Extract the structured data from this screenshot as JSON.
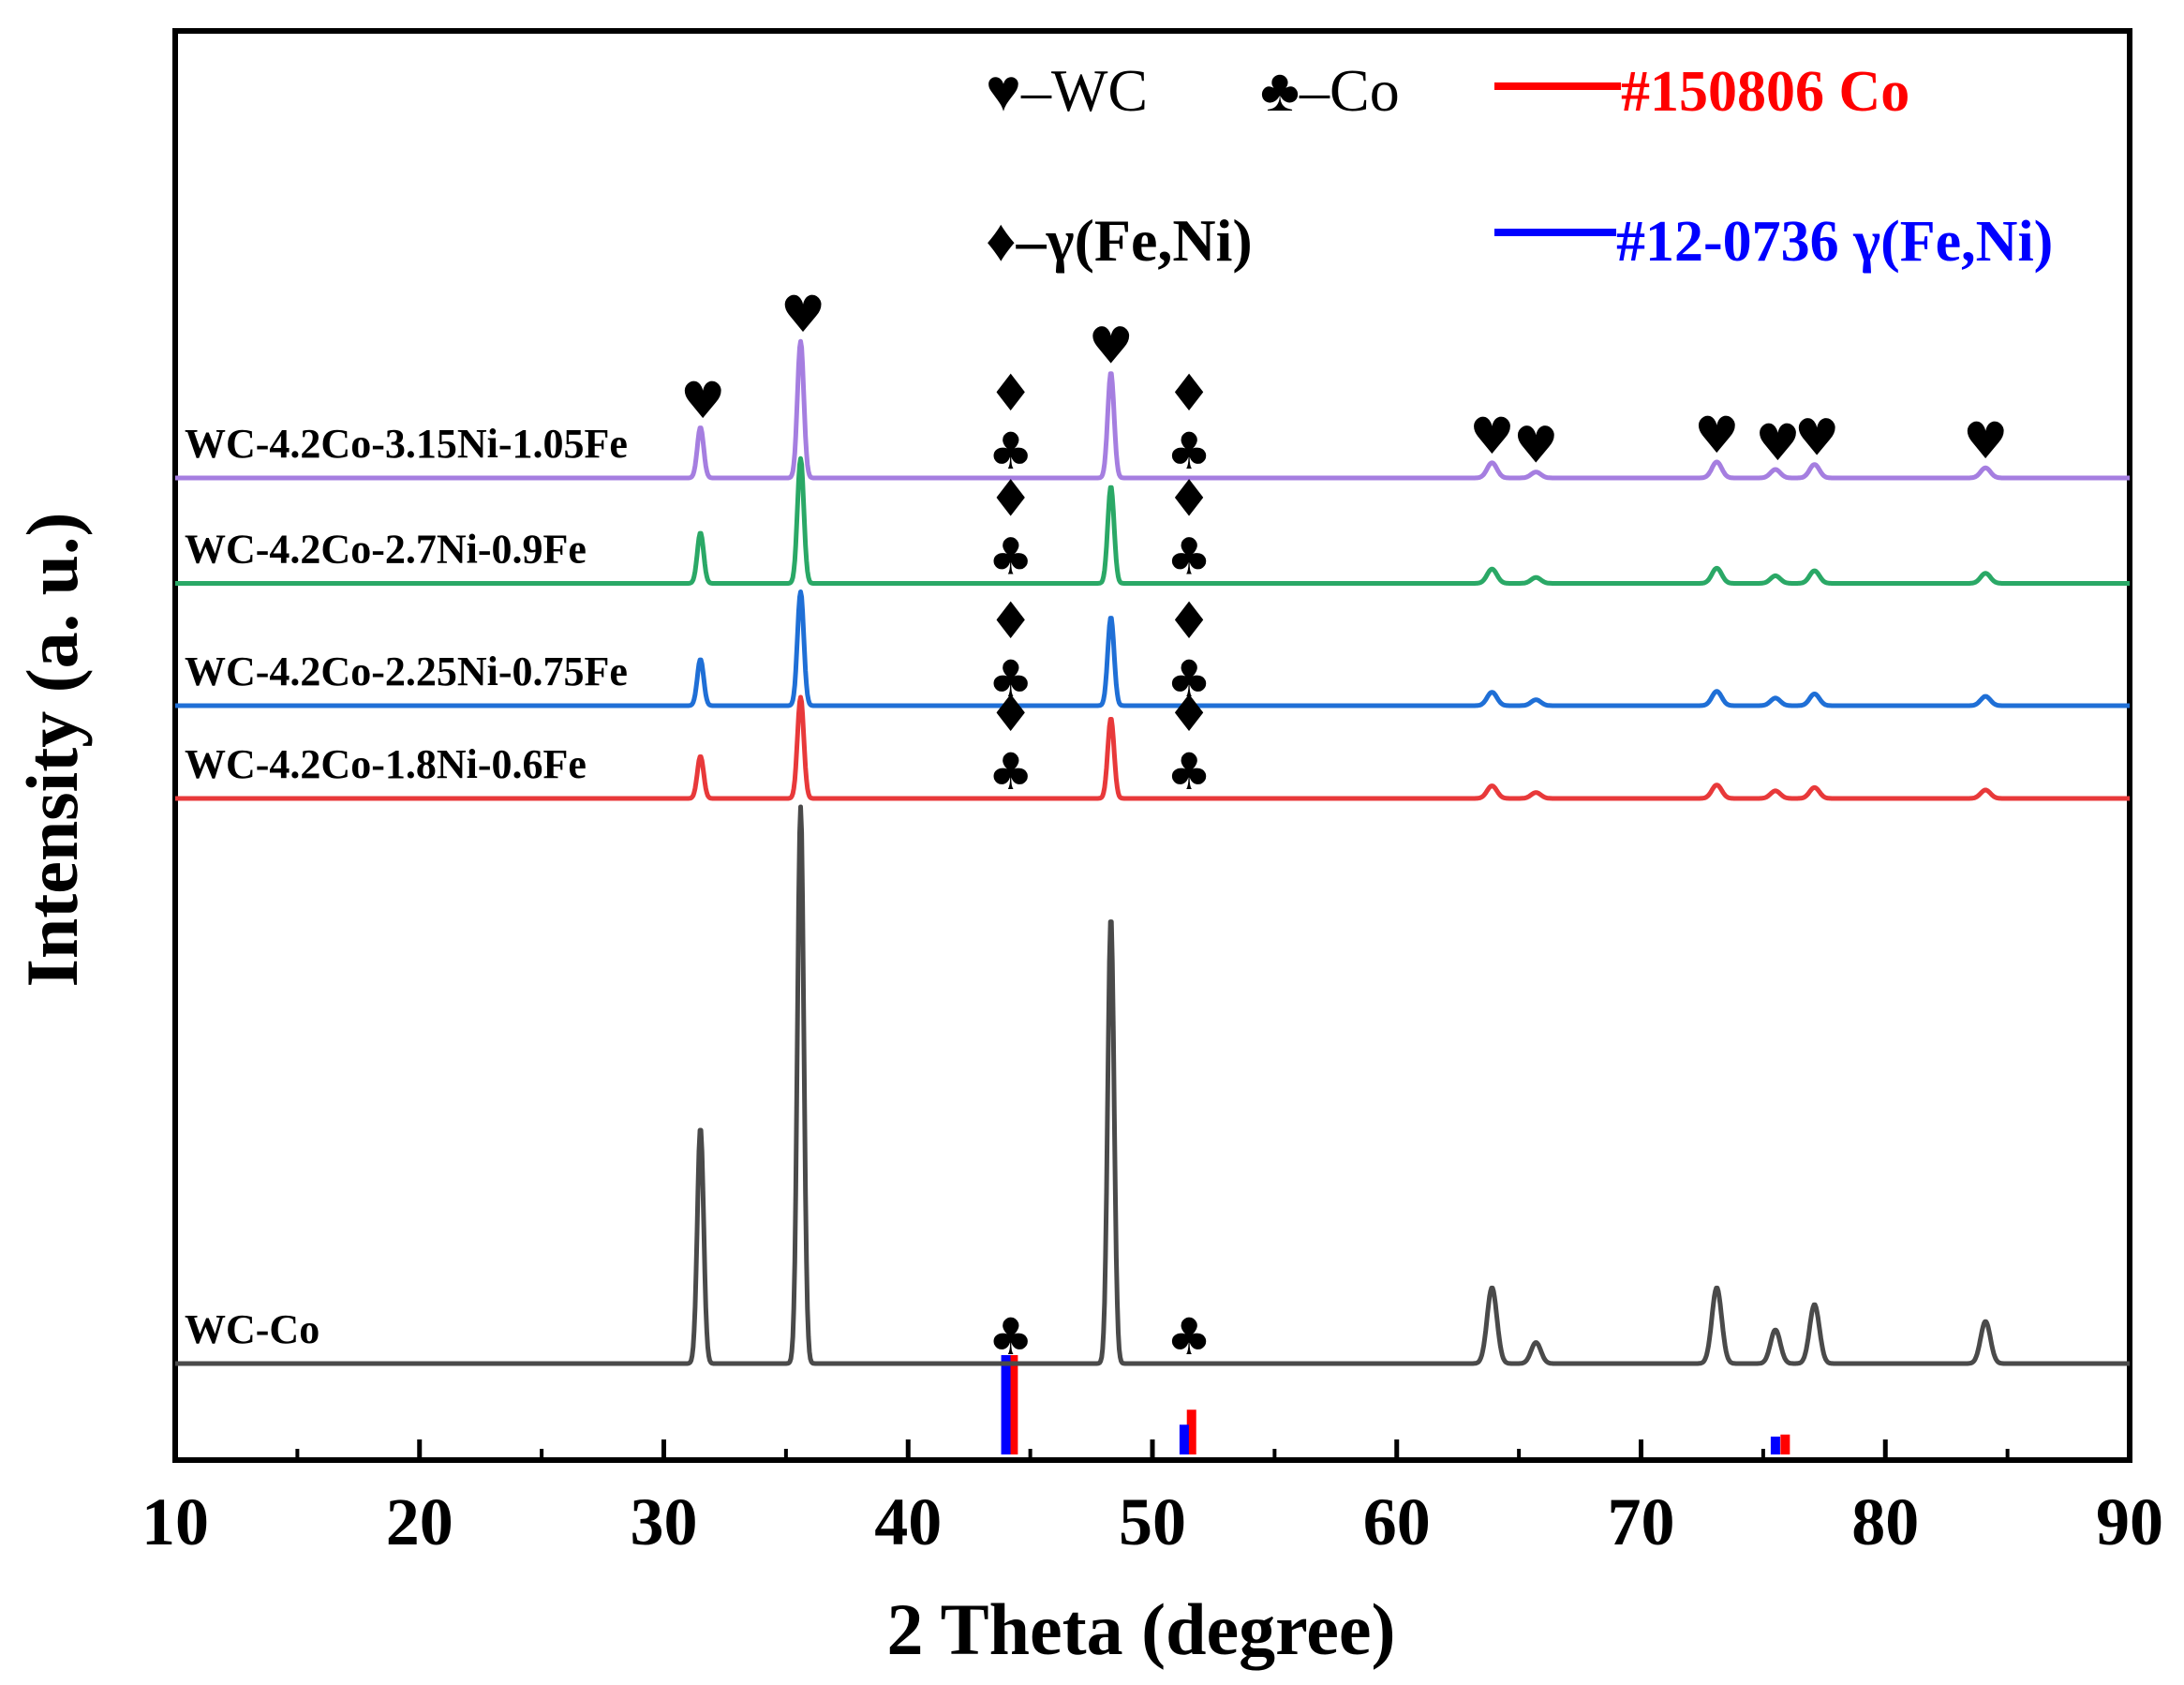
{
  "chart_data": {
    "type": "line",
    "xlabel": "2 Theta (degree)",
    "ylabel": "Intensity (a. u.)",
    "xlim": [
      10,
      90
    ],
    "xticks": [
      "10",
      "20",
      "30",
      "40",
      "50",
      "60",
      "70",
      "80",
      "90"
    ],
    "colors": {
      "WC-Co": "#4a4a4a",
      "WC-4.2Co-1.8Ni-0.6Fe": "#e8393a",
      "WC-4.2Co-2.25Ni-0.75Fe": "#1f6fd6",
      "WC-4.2Co-2.7Ni-0.9Fe": "#2aa866",
      "WC-4.2Co-3.15Ni-1.05Fe": "#a57ee0",
      "ref_co": "#ff0000",
      "ref_feni": "#0000ff"
    },
    "series": [
      {
        "name": "WC-Co",
        "label": "WC-Co",
        "color": "#4a4a4a",
        "baseline": 0.0,
        "peaks": [
          {
            "x": 31.5,
            "h": 0.28
          },
          {
            "x": 35.6,
            "h": 0.66
          },
          {
            "x": 48.3,
            "h": 0.53
          },
          {
            "x": 63.9,
            "h": 0.09
          },
          {
            "x": 65.7,
            "h": 0.025
          },
          {
            "x": 73.1,
            "h": 0.09
          },
          {
            "x": 75.5,
            "h": 0.04
          },
          {
            "x": 77.1,
            "h": 0.07
          },
          {
            "x": 84.1,
            "h": 0.05
          }
        ]
      },
      {
        "name": "WC-4.2Co-1.8Ni-0.6Fe",
        "label": "WC-4.2Co-1.8Ni-0.6Fe",
        "color": "#e8393a",
        "baseline": 0.67,
        "peaks": [
          {
            "x": 31.5,
            "h": 0.05
          },
          {
            "x": 35.6,
            "h": 0.12
          },
          {
            "x": 48.3,
            "h": 0.095
          },
          {
            "x": 63.9,
            "h": 0.015
          },
          {
            "x": 65.7,
            "h": 0.007
          },
          {
            "x": 73.1,
            "h": 0.016
          },
          {
            "x": 75.5,
            "h": 0.009
          },
          {
            "x": 77.1,
            "h": 0.013
          },
          {
            "x": 84.1,
            "h": 0.01
          }
        ]
      },
      {
        "name": "WC-4.2Co-2.25Ni-0.75Fe",
        "label": "WC-4.2Co-2.25Ni-0.75Fe",
        "color": "#1f6fd6",
        "baseline": 0.78,
        "peaks": [
          {
            "x": 31.5,
            "h": 0.055
          },
          {
            "x": 35.6,
            "h": 0.135
          },
          {
            "x": 48.3,
            "h": 0.105
          },
          {
            "x": 63.9,
            "h": 0.016
          },
          {
            "x": 65.7,
            "h": 0.007
          },
          {
            "x": 73.1,
            "h": 0.017
          },
          {
            "x": 75.5,
            "h": 0.009
          },
          {
            "x": 77.1,
            "h": 0.014
          },
          {
            "x": 84.1,
            "h": 0.011
          }
        ]
      },
      {
        "name": "WC-4.2Co-2.7Ni-0.9Fe",
        "label": "WC-4.2Co-2.7Ni-0.9Fe",
        "color": "#2aa866",
        "baseline": 0.925,
        "peaks": [
          {
            "x": 31.5,
            "h": 0.06
          },
          {
            "x": 35.6,
            "h": 0.148
          },
          {
            "x": 48.3,
            "h": 0.115
          },
          {
            "x": 63.9,
            "h": 0.017
          },
          {
            "x": 65.7,
            "h": 0.007
          },
          {
            "x": 73.1,
            "h": 0.018
          },
          {
            "x": 75.5,
            "h": 0.009
          },
          {
            "x": 77.1,
            "h": 0.015
          },
          {
            "x": 84.1,
            "h": 0.012
          }
        ]
      },
      {
        "name": "WC-4.2Co-3.15Ni-1.05Fe",
        "label": "WC-4.2Co-3.15Ni-1.05Fe",
        "color": "#a57ee0",
        "baseline": 1.05,
        "peaks": [
          {
            "x": 31.5,
            "h": 0.06
          },
          {
            "x": 35.6,
            "h": 0.162
          },
          {
            "x": 48.3,
            "h": 0.125
          },
          {
            "x": 63.9,
            "h": 0.018
          },
          {
            "x": 65.7,
            "h": 0.007
          },
          {
            "x": 73.1,
            "h": 0.019
          },
          {
            "x": 75.5,
            "h": 0.01
          },
          {
            "x": 77.1,
            "h": 0.016
          },
          {
            "x": 84.1,
            "h": 0.012
          }
        ]
      }
    ],
    "reference_lines": [
      {
        "name": "#150806 Co",
        "color": "#ff0000",
        "lines": [
          {
            "x": 44.3,
            "h": 1.0
          },
          {
            "x": 51.6,
            "h": 0.45
          },
          {
            "x": 75.9,
            "h": 0.2
          }
        ]
      },
      {
        "name": "#12-0736 γ(Fe,Ni)",
        "color": "#0000ff",
        "lines": [
          {
            "x": 44.0,
            "h": 1.0
          },
          {
            "x": 51.3,
            "h": 0.3
          },
          {
            "x": 75.5,
            "h": 0.18
          }
        ]
      }
    ],
    "phase_legend": [
      {
        "symbol": "♥",
        "text": "–WC"
      },
      {
        "symbol": "♣",
        "text": "–Co"
      },
      {
        "symbol": "♦",
        "text": "–γ(Fe,Ni)"
      }
    ],
    "annotations": [
      {
        "series": "WC-Co",
        "symbols": [
          {
            "x": 44.2,
            "s": "♣"
          },
          {
            "x": 51.5,
            "s": "♣"
          }
        ]
      },
      {
        "series": "WC-4.2Co-1.8Ni-0.6Fe",
        "symbols": [
          {
            "x": 44.2,
            "s": "♣"
          },
          {
            "x": 44.2,
            "s": "♦",
            "stack": 1
          },
          {
            "x": 51.5,
            "s": "♣"
          },
          {
            "x": 51.5,
            "s": "♦",
            "stack": 1
          }
        ]
      },
      {
        "series": "WC-4.2Co-2.25Ni-0.75Fe",
        "symbols": [
          {
            "x": 44.2,
            "s": "♣"
          },
          {
            "x": 44.2,
            "s": "♦",
            "stack": 1
          },
          {
            "x": 51.5,
            "s": "♣"
          },
          {
            "x": 51.5,
            "s": "♦",
            "stack": 1
          }
        ]
      },
      {
        "series": "WC-4.2Co-2.7Ni-0.9Fe",
        "symbols": [
          {
            "x": 44.2,
            "s": "♣"
          },
          {
            "x": 44.2,
            "s": "♦",
            "stack": 1
          },
          {
            "x": 51.5,
            "s": "♣"
          },
          {
            "x": 51.5,
            "s": "♦",
            "stack": 1
          }
        ]
      },
      {
        "series": "WC-4.2Co-3.15Ni-1.05Fe",
        "symbols": [
          {
            "x": 31.6,
            "s": "♥"
          },
          {
            "x": 35.7,
            "s": "♥"
          },
          {
            "x": 44.2,
            "s": "♣"
          },
          {
            "x": 44.2,
            "s": "♦",
            "stack": 1
          },
          {
            "x": 48.3,
            "s": "♥"
          },
          {
            "x": 51.5,
            "s": "♣"
          },
          {
            "x": 51.5,
            "s": "♦",
            "stack": 1
          },
          {
            "x": 63.9,
            "s": "♥"
          },
          {
            "x": 65.7,
            "s": "♥"
          },
          {
            "x": 73.1,
            "s": "♥"
          },
          {
            "x": 75.6,
            "s": "♥"
          },
          {
            "x": 77.2,
            "s": "♥"
          },
          {
            "x": 84.1,
            "s": "♥"
          }
        ]
      }
    ],
    "grid": false,
    "legend_position": "top"
  }
}
